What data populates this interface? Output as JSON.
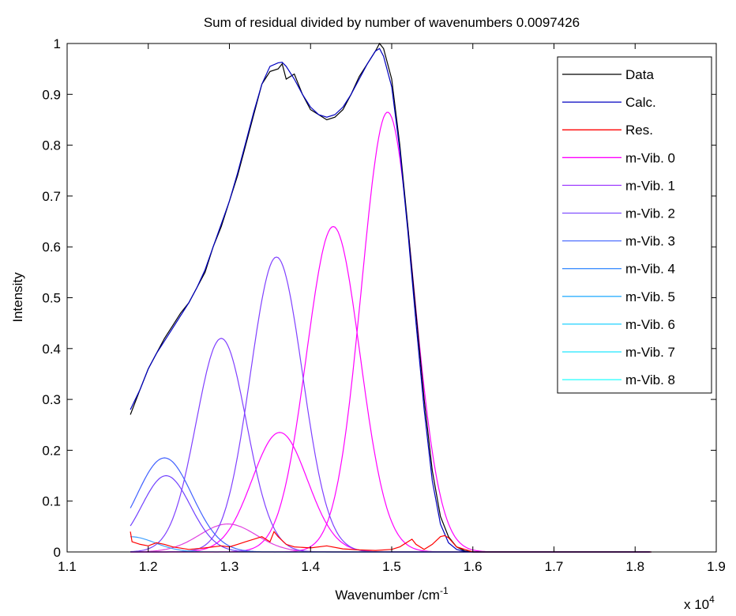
{
  "chart_data": {
    "type": "line",
    "title": "Sum of residual divided by number of wavenumbers 0.0097426",
    "xlabel": "Wavenumber /cm-1",
    "xlabel_parts": {
      "base": "Wavenumber /cm",
      "sup": "-1"
    },
    "ylabel": "Intensity",
    "x_multiplier": {
      "base": "x 10",
      "exp": "4"
    },
    "xlim": [
      1.1,
      1.9
    ],
    "ylim": [
      0,
      1
    ],
    "xticks": [
      1.1,
      1.2,
      1.3,
      1.4,
      1.5,
      1.6,
      1.7,
      1.8,
      1.9
    ],
    "xtick_labels": [
      "1.1",
      "1.2",
      "1.3",
      "1.4",
      "1.5",
      "1.6",
      "1.7",
      "1.8",
      "1.9"
    ],
    "yticks": [
      0,
      0.1,
      0.2,
      0.3,
      0.4,
      0.5,
      0.6,
      0.7,
      0.8,
      0.9,
      1
    ],
    "ytick_labels": [
      "0",
      "0.1",
      "0.2",
      "0.3",
      "0.4",
      "0.5",
      "0.6",
      "0.7",
      "0.8",
      "0.9",
      "1"
    ],
    "grid": false,
    "legend_position": "top-right",
    "series": [
      {
        "name": "Data",
        "color": "#000000",
        "x": [
          1.178,
          1.19,
          1.2,
          1.21,
          1.22,
          1.23,
          1.24,
          1.25,
          1.26,
          1.27,
          1.28,
          1.29,
          1.3,
          1.31,
          1.32,
          1.33,
          1.34,
          1.35,
          1.36,
          1.365,
          1.37,
          1.38,
          1.39,
          1.4,
          1.41,
          1.42,
          1.43,
          1.44,
          1.45,
          1.46,
          1.47,
          1.48,
          1.485,
          1.49,
          1.5,
          1.51,
          1.52,
          1.53,
          1.54,
          1.55,
          1.56,
          1.57,
          1.58,
          1.59,
          1.6,
          1.61,
          1.62,
          1.7,
          1.8,
          1.82
        ],
        "y": [
          0.27,
          0.32,
          0.36,
          0.39,
          0.42,
          0.445,
          0.47,
          0.49,
          0.52,
          0.55,
          0.6,
          0.64,
          0.69,
          0.74,
          0.8,
          0.86,
          0.92,
          0.945,
          0.95,
          0.96,
          0.93,
          0.94,
          0.9,
          0.87,
          0.86,
          0.85,
          0.855,
          0.87,
          0.9,
          0.935,
          0.96,
          0.985,
          1.0,
          0.99,
          0.93,
          0.8,
          0.64,
          0.47,
          0.3,
          0.16,
          0.07,
          0.03,
          0.01,
          0.002,
          0.0,
          0.0,
          0.0,
          0.0,
          0.0,
          0.0
        ]
      },
      {
        "name": "Calc.",
        "color": "#0000c0",
        "x": [
          1.178,
          1.19,
          1.2,
          1.21,
          1.22,
          1.23,
          1.24,
          1.25,
          1.26,
          1.27,
          1.28,
          1.29,
          1.3,
          1.31,
          1.32,
          1.33,
          1.34,
          1.35,
          1.36,
          1.365,
          1.37,
          1.38,
          1.39,
          1.4,
          1.41,
          1.42,
          1.43,
          1.44,
          1.45,
          1.46,
          1.47,
          1.48,
          1.485,
          1.49,
          1.5,
          1.51,
          1.52,
          1.53,
          1.54,
          1.55,
          1.56,
          1.57,
          1.58,
          1.59,
          1.6,
          1.61,
          1.62,
          1.7,
          1.8,
          1.82
        ],
        "y": [
          0.28,
          0.32,
          0.36,
          0.39,
          0.415,
          0.44,
          0.465,
          0.49,
          0.52,
          0.555,
          0.6,
          0.645,
          0.69,
          0.745,
          0.805,
          0.865,
          0.92,
          0.955,
          0.962,
          0.963,
          0.955,
          0.93,
          0.9,
          0.875,
          0.86,
          0.855,
          0.86,
          0.875,
          0.9,
          0.93,
          0.96,
          0.985,
          0.99,
          0.975,
          0.915,
          0.79,
          0.63,
          0.45,
          0.28,
          0.14,
          0.055,
          0.018,
          0.005,
          0.001,
          0.0,
          0.0,
          0.0,
          0.0,
          0.0,
          0.0
        ]
      },
      {
        "name": "Res.",
        "color": "#ff0000",
        "x": [
          1.178,
          1.18,
          1.19,
          1.2,
          1.21,
          1.22,
          1.23,
          1.25,
          1.27,
          1.29,
          1.3,
          1.31,
          1.32,
          1.33,
          1.34,
          1.35,
          1.355,
          1.36,
          1.37,
          1.38,
          1.4,
          1.42,
          1.44,
          1.46,
          1.48,
          1.5,
          1.51,
          1.52,
          1.525,
          1.53,
          1.54,
          1.55,
          1.56,
          1.565,
          1.57,
          1.58,
          1.6,
          1.7,
          1.8,
          1.82
        ],
        "y": [
          0.04,
          0.02,
          0.015,
          0.012,
          0.018,
          0.015,
          0.01,
          0.005,
          0.008,
          0.012,
          0.01,
          0.015,
          0.02,
          0.025,
          0.03,
          0.02,
          0.04,
          0.03,
          0.015,
          0.01,
          0.008,
          0.012,
          0.006,
          0.004,
          0.003,
          0.005,
          0.01,
          0.02,
          0.025,
          0.015,
          0.005,
          0.015,
          0.03,
          0.032,
          0.028,
          0.01,
          0.0,
          0.0,
          0.0,
          0.0
        ]
      },
      {
        "name": "m-Vib. 0",
        "color": "#ff00ff",
        "gaussian": {
          "amp": 0.865,
          "center": 1.495,
          "sigma": 0.032
        }
      },
      {
        "name": "m-Vib. 1",
        "color": "#ff00ff",
        "gaussian": {
          "amp": 0.64,
          "center": 1.428,
          "sigma": 0.033
        }
      },
      {
        "name": "m-Vib. 2",
        "color": "#ff00ff",
        "gaussian": {
          "amp": 0.235,
          "center": 1.362,
          "sigma": 0.034
        }
      },
      {
        "name": "m-Vib. 3",
        "color": "#e040e0",
        "gaussian": {
          "amp": 0.055,
          "center": 1.298,
          "sigma": 0.035
        }
      },
      {
        "name": "m-Vib. 4",
        "color": "#8040ff",
        "gaussian": {
          "amp": 0.58,
          "center": 1.358,
          "sigma": 0.032
        }
      },
      {
        "name": "m-Vib. 5",
        "color": "#8040ff",
        "gaussian": {
          "amp": 0.42,
          "center": 1.29,
          "sigma": 0.031
        }
      },
      {
        "name": "m-Vib. 6",
        "color": "#7040ff",
        "gaussian": {
          "amp": 0.15,
          "center": 1.222,
          "sigma": 0.03
        }
      },
      {
        "name": "m-Vib. 7",
        "color": "#4060ff",
        "gaussian": {
          "amp": 0.185,
          "center": 1.22,
          "sigma": 0.034
        }
      },
      {
        "name": "m-Vib. 8",
        "color": "#40a0ff",
        "gaussian": {
          "amp": 0.03,
          "center": 1.178,
          "sigma": 0.03
        }
      }
    ],
    "legend": [
      {
        "label": "Data",
        "color": "#000000"
      },
      {
        "label": "Calc.",
        "color": "#0000c0"
      },
      {
        "label": "Res.",
        "color": "#ff0000"
      },
      {
        "label": "m-Vib. 0",
        "color": "#ff00ff"
      },
      {
        "label": "m-Vib. 1",
        "color": "#a040ff"
      },
      {
        "label": "m-Vib. 2",
        "color": "#8050ff"
      },
      {
        "label": "m-Vib. 3",
        "color": "#5070ff"
      },
      {
        "label": "m-Vib. 4",
        "color": "#4090ff"
      },
      {
        "label": "m-Vib. 5",
        "color": "#30b0ff"
      },
      {
        "label": "m-Vib. 6",
        "color": "#20d0ff"
      },
      {
        "label": "m-Vib. 7",
        "color": "#20e8ff"
      },
      {
        "label": "m-Vib. 8",
        "color": "#20ffff"
      }
    ]
  }
}
